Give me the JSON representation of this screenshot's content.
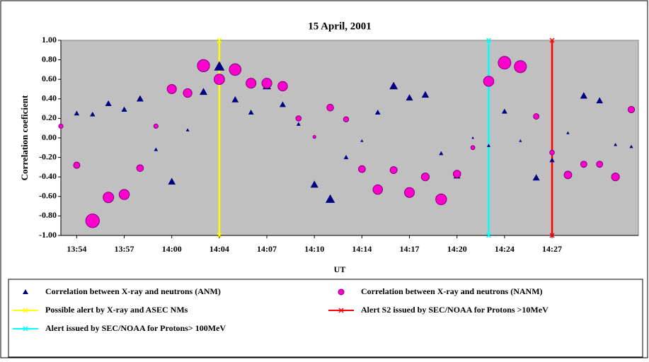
{
  "chart_data": {
    "type": "scatter",
    "title": "15 April, 2001",
    "x_label": "UT",
    "y_label": "Correlation coeficient",
    "categories": [
      null,
      "13:54",
      null,
      null,
      "13:57",
      null,
      null,
      "14:00",
      null,
      null,
      "14:04",
      null,
      null,
      "14:07",
      null,
      null,
      "14:10",
      null,
      null,
      "14:14",
      null,
      null,
      "14:17",
      null,
      null,
      "14:20",
      null,
      null,
      "14:24",
      null,
      null,
      "14:27",
      null,
      null,
      null,
      null,
      null
    ],
    "ylim": [
      -1,
      1
    ],
    "yticks": [
      {
        "value": 1,
        "label": "1.00"
      },
      {
        "value": 0.8,
        "label": "0.80"
      },
      {
        "value": 0.6,
        "label": "0.60"
      },
      {
        "value": 0.4,
        "label": "0.40"
      },
      {
        "value": 0.2,
        "label": "0.20"
      },
      {
        "value": 0,
        "label": "0.00"
      },
      {
        "value": -0.2,
        "label": "-0.20"
      },
      {
        "value": -0.4,
        "label": "-0.40"
      },
      {
        "value": -0.6,
        "label": "-0.60"
      },
      {
        "value": -0.8,
        "label": "-0.80"
      },
      {
        "value": -1,
        "label": "-1.00"
      }
    ],
    "grid": false,
    "background": "#c0c0c0",
    "series": [
      {
        "name": "Correlation between X-ray and neutrons (ANM)",
        "marker": "triangle",
        "color": "#000080",
        "values": [
          null,
          0.25,
          0.24,
          0.35,
          0.29,
          0.4,
          -0.12,
          -0.45,
          0.08,
          0.47,
          0.73,
          0.39,
          0.26,
          0.53,
          0.34,
          0.14,
          -0.48,
          -0.63,
          -0.2,
          -0.03,
          0.26,
          0.53,
          0.41,
          0.44,
          -0.16,
          -0.39,
          0.0,
          -0.08,
          0.27,
          -0.03,
          -0.41,
          -0.23,
          0.05,
          0.43,
          0.38,
          -0.07,
          -0.09
        ]
      },
      {
        "name": "Correlation between X-ray and neutrons (NANM)",
        "marker": "circle",
        "color": "#ff00cc",
        "values": [
          0.12,
          -0.28,
          -0.85,
          -0.61,
          -0.58,
          -0.31,
          0.12,
          0.5,
          0.46,
          0.74,
          0.6,
          0.7,
          0.56,
          0.56,
          0.53,
          0.2,
          0.01,
          0.31,
          0.19,
          -0.32,
          -0.53,
          -0.33,
          -0.56,
          -0.4,
          -0.63,
          -0.37,
          -0.1,
          0.58,
          0.77,
          0.73,
          0.22,
          -0.15,
          -0.38,
          -0.27,
          -0.27,
          -0.4,
          0.29
        ]
      }
    ],
    "alerts": [
      {
        "name": "Possible alert  by X-ray and ASEC NMs",
        "color": "#ffff00",
        "index": 10,
        "values": [
          1,
          -1
        ]
      },
      {
        "name": "Alert S2 issued by SEC/NOAA for Protons >10MeV",
        "color": "#ff0000",
        "index": 31,
        "values": [
          1,
          -1
        ]
      },
      {
        "name": "Alert issued by SEC/NOAA for Protons> 100MeV",
        "color": "#00ffff",
        "index": 27,
        "values": [
          1,
          -1
        ]
      }
    ]
  }
}
